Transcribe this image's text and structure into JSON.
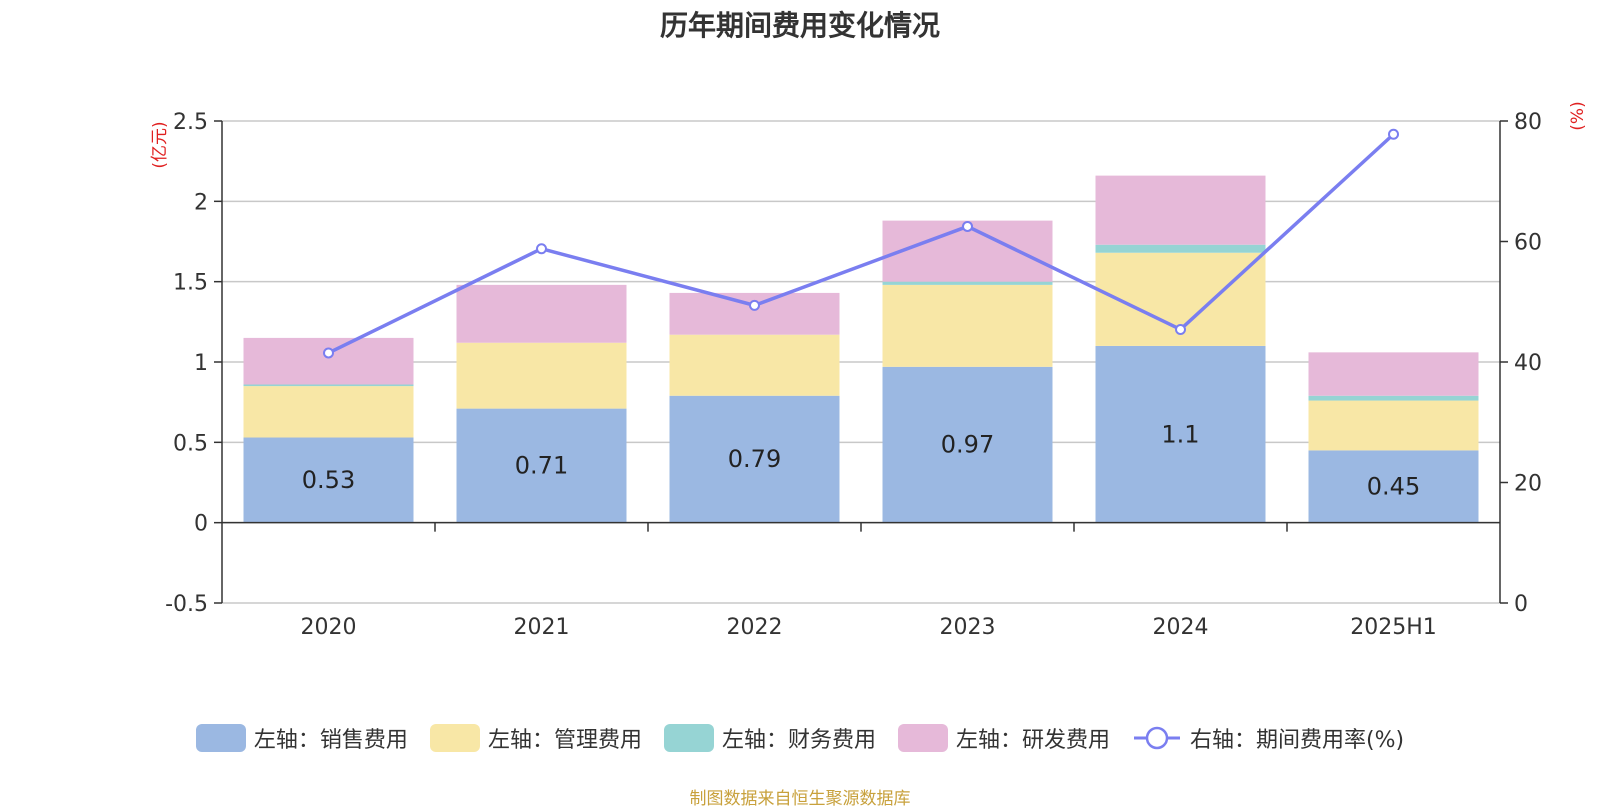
{
  "chart_data": {
    "type": "bar",
    "title": "历年期间费用变化情况",
    "categories": [
      "2020",
      "2021",
      "2022",
      "2023",
      "2024",
      "2025H1"
    ],
    "y_left_label": "(亿元)",
    "y_right_label": "(%)",
    "y_left_ticks": [
      "2.5",
      "2",
      "1.5",
      "1",
      "0.5",
      "0",
      "-0.5"
    ],
    "y_right_ticks": [
      "80",
      "60",
      "40",
      "20",
      "0"
    ],
    "ylim_left": [
      -0.5,
      2.5
    ],
    "ylim_right": [
      0,
      80
    ],
    "stacked": true,
    "grid": true,
    "legend_position": "bottom",
    "series": [
      {
        "name": "左轴：销售费用",
        "axis": "left",
        "color": "#9bb8e2",
        "values": [
          0.53,
          0.71,
          0.79,
          0.97,
          1.1,
          0.45
        ],
        "labels": [
          "0.53",
          "0.71",
          "0.79",
          "0.97",
          "1.1",
          "0.45"
        ]
      },
      {
        "name": "左轴：管理费用",
        "axis": "left",
        "color": "#f8e7a6",
        "values": [
          0.32,
          0.41,
          0.38,
          0.51,
          0.58,
          0.31
        ]
      },
      {
        "name": "左轴：财务费用",
        "axis": "left",
        "color": "#96d4d4",
        "values": [
          0.01,
          0.0,
          0.0,
          0.02,
          0.05,
          0.03
        ]
      },
      {
        "name": "左轴：研发费用",
        "axis": "left",
        "color": "#e6b9d9",
        "values": [
          0.29,
          0.36,
          0.26,
          0.38,
          0.43,
          0.27
        ]
      },
      {
        "name": "右轴：期间费用率(%)",
        "axis": "right",
        "type": "line",
        "color": "#7a7ef0",
        "values": [
          41.5,
          58.8,
          49.4,
          62.5,
          45.4,
          77.8
        ]
      }
    ]
  },
  "source_note": "制图数据来自恒生聚源数据库"
}
